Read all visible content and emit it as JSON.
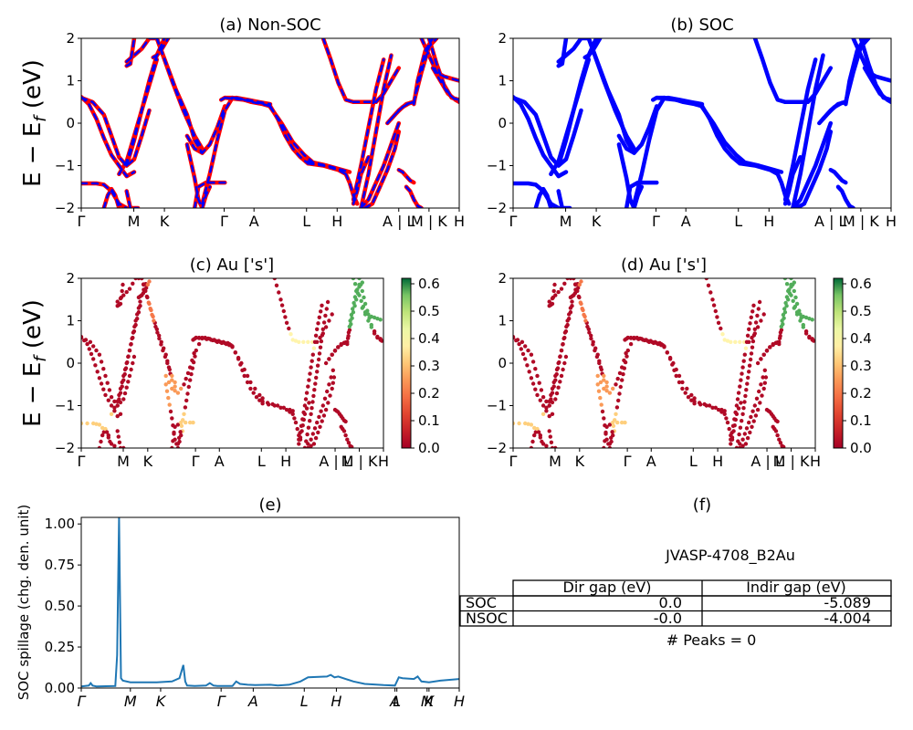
{
  "chart_data": [
    {
      "id": "a",
      "type": "line",
      "title": "(a) Non-SOC",
      "ylabel": "E − E_f (eV)",
      "ylim": [
        -2,
        2
      ],
      "yticks": [
        "2",
        "1",
        "0",
        "−1",
        "−2"
      ],
      "xticks": [
        "Γ",
        "M",
        "K",
        "Γ",
        "A",
        "L",
        "H",
        "A | L",
        "M | K",
        "H"
      ],
      "colors": {
        "main": "#ff0000",
        "overlay": "#0000ff"
      },
      "series": [
        {
          "x": [
            0.0,
            0.02,
            0.04,
            0.06,
            0.08,
            0.1,
            0.12,
            0.14
          ],
          "y": [
            0.62,
            0.45,
            0.1,
            -0.35,
            -0.75,
            -1.0,
            -1.25,
            -1.15
          ]
        },
        {
          "x": [
            0.0,
            0.03,
            0.06,
            0.08,
            0.1,
            0.12,
            0.14,
            0.16,
            0.18
          ],
          "y": [
            0.6,
            0.5,
            0.2,
            -0.3,
            -0.8,
            -1.0,
            -0.85,
            -0.3,
            0.3
          ]
        },
        {
          "x": [
            0.0,
            0.04,
            0.06,
            0.08,
            0.1,
            0.12
          ],
          "y": [
            -1.42,
            -1.42,
            -1.45,
            -1.6,
            -1.9,
            -2.0
          ]
        },
        {
          "x": [
            0.06,
            0.07,
            0.08,
            0.09,
            0.1
          ],
          "y": [
            -2.0,
            -1.7,
            -1.55,
            -1.7,
            -2.0
          ]
        },
        {
          "x": [
            0.12,
            0.13,
            0.15
          ],
          "y": [
            -1.6,
            -2.0,
            -2.0
          ]
        },
        {
          "x": [
            0.1,
            0.12,
            0.14,
            0.16,
            0.18,
            0.2
          ],
          "y": [
            -1.2,
            -0.9,
            -0.3,
            0.3,
            0.9,
            1.5
          ]
        },
        {
          "x": [
            0.12,
            0.14,
            0.16,
            0.18,
            0.2,
            0.22
          ],
          "y": [
            -1.0,
            -0.4,
            0.3,
            1.0,
            1.6,
            2.0
          ]
        },
        {
          "x": [
            0.12,
            0.13,
            0.14
          ],
          "y": [
            1.35,
            1.4,
            2.0
          ]
        },
        {
          "x": [
            0.12,
            0.14,
            0.16,
            0.18,
            0.2
          ],
          "y": [
            1.45,
            1.6,
            1.75,
            2.0,
            2.0
          ]
        },
        {
          "x": [
            0.19,
            0.2,
            0.21,
            0.22,
            0.23
          ],
          "y": [
            1.55,
            1.6,
            1.7,
            1.85,
            2.0
          ]
        },
        {
          "x": [
            0.2,
            0.25,
            0.28,
            0.3,
            0.32
          ],
          "y": [
            2.0,
            0.8,
            0.2,
            -0.4,
            -0.7
          ]
        },
        {
          "x": [
            0.2,
            0.24,
            0.27,
            0.3,
            0.32
          ],
          "y": [
            2.0,
            1.0,
            0.3,
            -0.3,
            -0.6
          ]
        },
        {
          "x": [
            0.28,
            0.3,
            0.32,
            0.34,
            0.36,
            0.38
          ],
          "y": [
            -0.3,
            -0.6,
            -0.7,
            -0.5,
            -0.1,
            0.4
          ]
        },
        {
          "x": [
            0.28,
            0.3,
            0.31,
            0.32,
            0.33,
            0.34
          ],
          "y": [
            -0.5,
            -1.3,
            -1.8,
            -2.0,
            -1.7,
            -1.5
          ]
        },
        {
          "x": [
            0.3,
            0.31,
            0.33,
            0.36,
            0.38
          ],
          "y": [
            -2.0,
            -1.5,
            -1.4,
            -1.4,
            -1.4
          ]
        },
        {
          "x": [
            0.32,
            0.34,
            0.36,
            0.38,
            0.4
          ],
          "y": [
            -1.9,
            -1.2,
            -0.4,
            0.3,
            0.6
          ]
        },
        {
          "x": [
            0.37,
            0.38,
            0.4,
            0.42,
            0.45,
            0.48,
            0.5
          ],
          "y": [
            0.55,
            0.6,
            0.6,
            0.58,
            0.5,
            0.45,
            0.4
          ]
        },
        {
          "x": [
            0.38,
            0.4,
            0.43,
            0.46,
            0.49,
            0.5
          ],
          "y": [
            0.6,
            0.58,
            0.55,
            0.5,
            0.45,
            0.4
          ]
        },
        {
          "x": [
            0.41,
            0.44,
            0.47,
            0.5
          ],
          "y": [
            0.6,
            0.55,
            0.5,
            0.45
          ]
        },
        {
          "x": [
            0.5,
            0.52,
            0.54,
            0.56,
            0.58,
            0.6
          ],
          "y": [
            0.4,
            0.1,
            -0.3,
            -0.6,
            -0.8,
            -0.95
          ]
        },
        {
          "x": [
            0.5,
            0.53,
            0.56,
            0.59,
            0.61
          ],
          "y": [
            0.38,
            0.0,
            -0.45,
            -0.75,
            -0.9
          ]
        },
        {
          "x": [
            0.6,
            0.64,
            0.68,
            0.7
          ],
          "y": [
            -0.95,
            -1.0,
            -1.1,
            -1.2
          ]
        },
        {
          "x": [
            0.6,
            0.65,
            0.69,
            0.71
          ],
          "y": [
            -0.9,
            -1.0,
            -1.1,
            -1.15
          ]
        },
        {
          "x": [
            0.7,
            0.71,
            0.72,
            0.73
          ],
          "y": [
            -1.2,
            -1.4,
            -1.7,
            -1.9
          ]
        },
        {
          "x": [
            0.72,
            0.73,
            0.74,
            0.76
          ],
          "y": [
            -1.9,
            -1.6,
            -1.2,
            -0.8
          ]
        },
        {
          "x": [
            0.64,
            0.66,
            0.68,
            0.7,
            0.72
          ],
          "y": [
            2.0,
            1.5,
            0.95,
            0.55,
            0.5
          ]
        },
        {
          "x": [
            0.72,
            0.75,
            0.78
          ],
          "y": [
            0.5,
            0.5,
            0.5
          ]
        },
        {
          "x": [
            0.72,
            0.74,
            0.76,
            0.78,
            0.8
          ],
          "y": [
            -1.8,
            -1.0,
            -0.1,
            0.8,
            1.5
          ]
        },
        {
          "x": [
            0.74,
            0.76,
            0.78,
            0.8,
            0.82
          ],
          "y": [
            -2.0,
            -1.2,
            -0.2,
            0.8,
            1.6
          ]
        },
        {
          "x": [
            0.78,
            0.8,
            0.82,
            0.84
          ],
          "y": [
            0.5,
            0.7,
            1.0,
            1.3
          ]
        },
        {
          "x": [
            0.74,
            0.76,
            0.78,
            0.8,
            0.82,
            0.84
          ],
          "y": [
            -2.0,
            -1.8,
            -1.4,
            -1.0,
            -0.5,
            0.0
          ]
        },
        {
          "x": [
            0.75,
            0.77,
            0.79,
            0.81,
            0.83,
            0.84
          ],
          "y": [
            -2.0,
            -1.9,
            -1.5,
            -1.1,
            -0.6,
            -0.2
          ]
        },
        {
          "x": [
            0.82,
            0.84,
            0.86,
            0.88
          ],
          "y": [
            0.1,
            0.3,
            0.45,
            0.5
          ]
        },
        {
          "x": [
            0.81,
            0.83,
            0.85,
            0.87,
            0.88
          ],
          "y": [
            0.0,
            0.2,
            0.38,
            0.48,
            0.5
          ]
        },
        {
          "x": [
            0.84,
            0.85,
            0.86,
            0.87,
            0.88
          ],
          "y": [
            -1.1,
            -1.15,
            -1.25,
            -1.35,
            -1.4
          ]
        },
        {
          "x": [
            0.86,
            0.87,
            0.88,
            0.89,
            0.9
          ],
          "y": [
            -1.5,
            -1.6,
            -1.8,
            -1.95,
            -2.0
          ]
        },
        {
          "x": [
            0.88,
            0.9,
            0.92,
            0.94
          ],
          "y": [
            0.5,
            1.2,
            1.8,
            2.0
          ]
        },
        {
          "x": [
            0.88,
            0.89,
            0.91,
            0.93
          ],
          "y": [
            0.45,
            1.0,
            1.7,
            2.0
          ]
        },
        {
          "x": [
            0.9,
            0.92,
            0.94,
            0.96,
            0.98,
            1.0
          ],
          "y": [
            2.0,
            1.6,
            1.2,
            1.1,
            1.05,
            1.0
          ]
        },
        {
          "x": [
            0.92,
            0.94,
            0.96,
            0.98,
            1.0
          ],
          "y": [
            2.0,
            1.4,
            0.9,
            0.6,
            0.55
          ]
        },
        {
          "x": [
            0.93,
            0.95,
            0.97,
            0.99,
            1.0
          ],
          "y": [
            1.3,
            1.0,
            0.7,
            0.55,
            0.5
          ]
        }
      ]
    },
    {
      "id": "b",
      "type": "line",
      "title": "(b) SOC",
      "ylim": [
        -2,
        2
      ],
      "yticks": [
        "2",
        "1",
        "0",
        "−1",
        "−2"
      ],
      "xticks": [
        "Γ",
        "M",
        "K",
        "Γ",
        "A",
        "L",
        "H",
        "A | L",
        "M | K",
        "H"
      ],
      "colors": {
        "main": "#0000ff"
      },
      "series_from": "a"
    },
    {
      "id": "c",
      "type": "scatter",
      "title": "(c)  Au ['s']",
      "ylabel": "E − E_f (eV)",
      "ylim": [
        -2,
        2
      ],
      "yticks": [
        "2",
        "1",
        "0",
        "−1",
        "−2"
      ],
      "xticks": [
        "Γ",
        "M",
        "K",
        "Γ",
        "A",
        "L",
        "H",
        "A | L",
        "M | K",
        "H"
      ],
      "colorbar": {
        "min": 0.0,
        "max": 0.62,
        "ticks": [
          "0.6",
          "0.5",
          "0.4",
          "0.3",
          "0.2",
          "0.1",
          "0.0"
        ]
      },
      "weight_regions": [
        {
          "x": [
            0.0,
            0.1
          ],
          "y": [
            -1.6,
            -1.2
          ],
          "w": 0.32
        },
        {
          "x": [
            0.22,
            0.26
          ],
          "y": [
            1.0,
            2.0
          ],
          "w": 0.2
        },
        {
          "x": [
            0.28,
            0.33
          ],
          "y": [
            -1.0,
            -0.3
          ],
          "w": 0.25
        },
        {
          "x": [
            0.33,
            0.42
          ],
          "y": [
            -1.6,
            -1.2
          ],
          "w": 0.32
        },
        {
          "x": [
            0.69,
            0.77
          ],
          "y": [
            0.3,
            0.8
          ],
          "w": 0.38
        },
        {
          "x": [
            0.71,
            0.73
          ],
          "y": [
            1.0,
            2.0
          ],
          "w": 0.5
        },
        {
          "x": [
            0.88,
            1.0
          ],
          "y": [
            0.8,
            2.0
          ],
          "w": 0.58
        }
      ]
    },
    {
      "id": "d",
      "type": "scatter",
      "title": "(d) Au ['s']",
      "ylim": [
        -2,
        2
      ],
      "yticks": [
        "2",
        "1",
        "0",
        "−1",
        "−2"
      ],
      "xticks": [
        "Γ",
        "M",
        "K",
        "Γ",
        "A",
        "L",
        "H",
        "A | L",
        "M | K",
        "H"
      ],
      "colorbar": {
        "min": 0.0,
        "max": 0.62,
        "ticks": [
          "0.6",
          "0.5",
          "0.4",
          "0.3",
          "0.2",
          "0.1",
          "0.0"
        ]
      },
      "weight_regions_from": "c"
    },
    {
      "id": "e",
      "type": "line",
      "title": "(e)",
      "ylabel": "SOC spillage (chg. den. unit)",
      "ylim": [
        0,
        1.04
      ],
      "yticks": [
        "1.00",
        "0.75",
        "0.50",
        "0.25",
        "0.00"
      ],
      "xticks": [
        "Γ",
        "M",
        "K",
        "Γ",
        "A",
        "L",
        "H",
        "A",
        "L",
        "M",
        "K",
        "H"
      ],
      "colors": {
        "line": "#1f77b4"
      },
      "x": [
        0,
        0.02,
        0.025,
        0.03,
        0.04,
        0.09,
        0.095,
        0.1,
        0.105,
        0.11,
        0.13,
        0.16,
        0.2,
        0.24,
        0.26,
        0.27,
        0.275,
        0.28,
        0.3,
        0.33,
        0.34,
        0.35,
        0.36,
        0.37,
        0.4,
        0.41,
        0.42,
        0.44,
        0.46,
        0.5,
        0.52,
        0.55,
        0.58,
        0.6,
        0.65,
        0.66,
        0.67,
        0.68,
        0.72,
        0.75,
        0.8,
        0.83,
        0.84,
        0.85,
        0.88,
        0.89,
        0.9,
        0.92,
        0.95,
        1.0
      ],
      "y": [
        0.01,
        0.015,
        0.03,
        0.015,
        0.01,
        0.012,
        0.2,
        1.04,
        0.06,
        0.045,
        0.035,
        0.035,
        0.035,
        0.04,
        0.06,
        0.14,
        0.04,
        0.015,
        0.012,
        0.015,
        0.03,
        0.015,
        0.012,
        0.012,
        0.012,
        0.04,
        0.025,
        0.02,
        0.018,
        0.02,
        0.015,
        0.02,
        0.04,
        0.065,
        0.07,
        0.08,
        0.065,
        0.07,
        0.04,
        0.025,
        0.018,
        0.015,
        0.065,
        0.06,
        0.055,
        0.07,
        0.04,
        0.035,
        0.045,
        0.055
      ]
    }
  ],
  "panel_f": {
    "title": "(f)",
    "material": "JVASP-4708_B2Au",
    "table": {
      "headers": [
        "",
        "Dir gap (eV)",
        "Indir gap (eV)"
      ],
      "rows": [
        [
          "SOC",
          "0.0",
          "-5.089"
        ],
        [
          "NSOC",
          "-0.0",
          "-4.004"
        ]
      ]
    },
    "peaks": "# Peaks = 0"
  }
}
